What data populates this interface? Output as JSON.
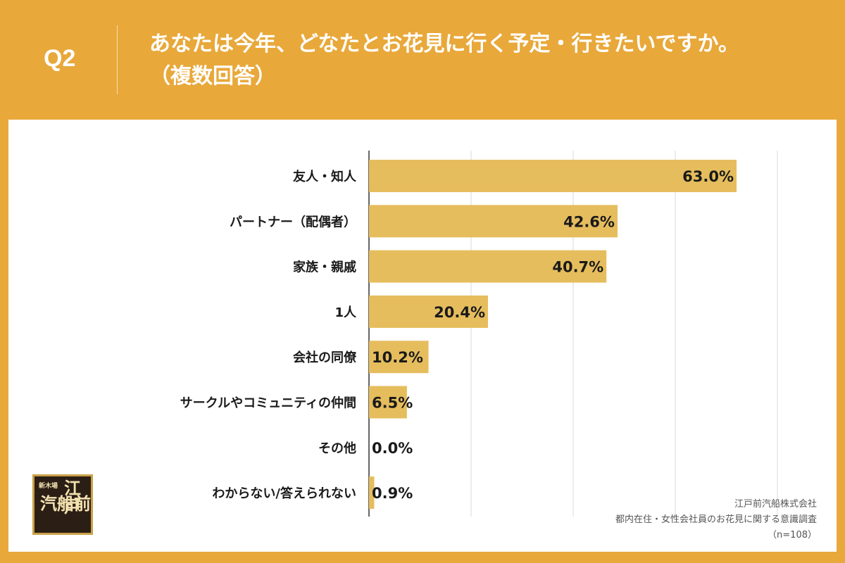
{
  "header": {
    "question_label": "Q2",
    "title_line1": "あなたは今年、どなたとお花見に行く予定・行きたいですか。",
    "title_line2": "（複数回答）"
  },
  "colors": {
    "background": "#e8a83a",
    "bar": "#e6bd5d",
    "gridline": "#d9d9d9"
  },
  "chart_data": {
    "type": "bar",
    "orientation": "horizontal",
    "categories": [
      "友人・知人",
      "パートナー（配偶者）",
      "家族・親戚",
      "1人",
      "会社の同僚",
      "サークルやコミュニティの仲間",
      "その他",
      "わからない/答えられない"
    ],
    "values": [
      63.0,
      42.6,
      40.7,
      20.4,
      10.2,
      6.5,
      0.0,
      0.9
    ],
    "value_labels": [
      "63.0%",
      "42.6%",
      "40.7%",
      "20.4%",
      "10.2%",
      "6.5%",
      "0.0%",
      "0.9%"
    ],
    "xlim": [
      0,
      70
    ],
    "grid": true
  },
  "footer": {
    "company": "江戸前汽船株式会社",
    "survey": "都内在住・女性会社員のお花見に関する意識調査",
    "sample": "（n=108）"
  },
  "logo": {
    "sub": "新木場",
    "line1": "江戸",
    "line2": "汽船前"
  }
}
